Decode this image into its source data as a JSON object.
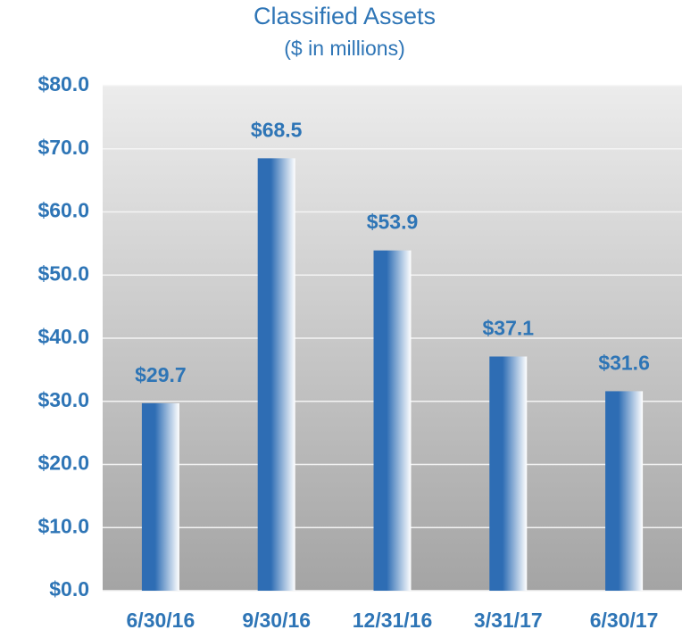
{
  "chart_data": {
    "type": "bar",
    "title": "Classified Assets",
    "subtitle": "($ in millions)",
    "categories": [
      "6/30/16",
      "9/30/16",
      "12/31/16",
      "3/31/17",
      "6/30/17"
    ],
    "values": [
      29.7,
      68.5,
      53.9,
      37.1,
      31.6
    ],
    "value_labels": [
      "$29.7",
      "$68.5",
      "$53.9",
      "$37.1",
      "$31.6"
    ],
    "color": "#2e6db4",
    "ylim": [
      0,
      80
    ],
    "yticks": [
      {
        "value": 0,
        "label": "$0.0"
      },
      {
        "value": 10,
        "label": "$10.0"
      },
      {
        "value": 20,
        "label": "$20.0"
      },
      {
        "value": 30,
        "label": "$30.0"
      },
      {
        "value": 40,
        "label": "$40.0"
      },
      {
        "value": 50,
        "label": "$50.0"
      },
      {
        "value": 60,
        "label": "$60.0"
      },
      {
        "value": 70,
        "label": "$70.0"
      },
      {
        "value": 80,
        "label": "$80.0"
      }
    ],
    "grid": true
  }
}
